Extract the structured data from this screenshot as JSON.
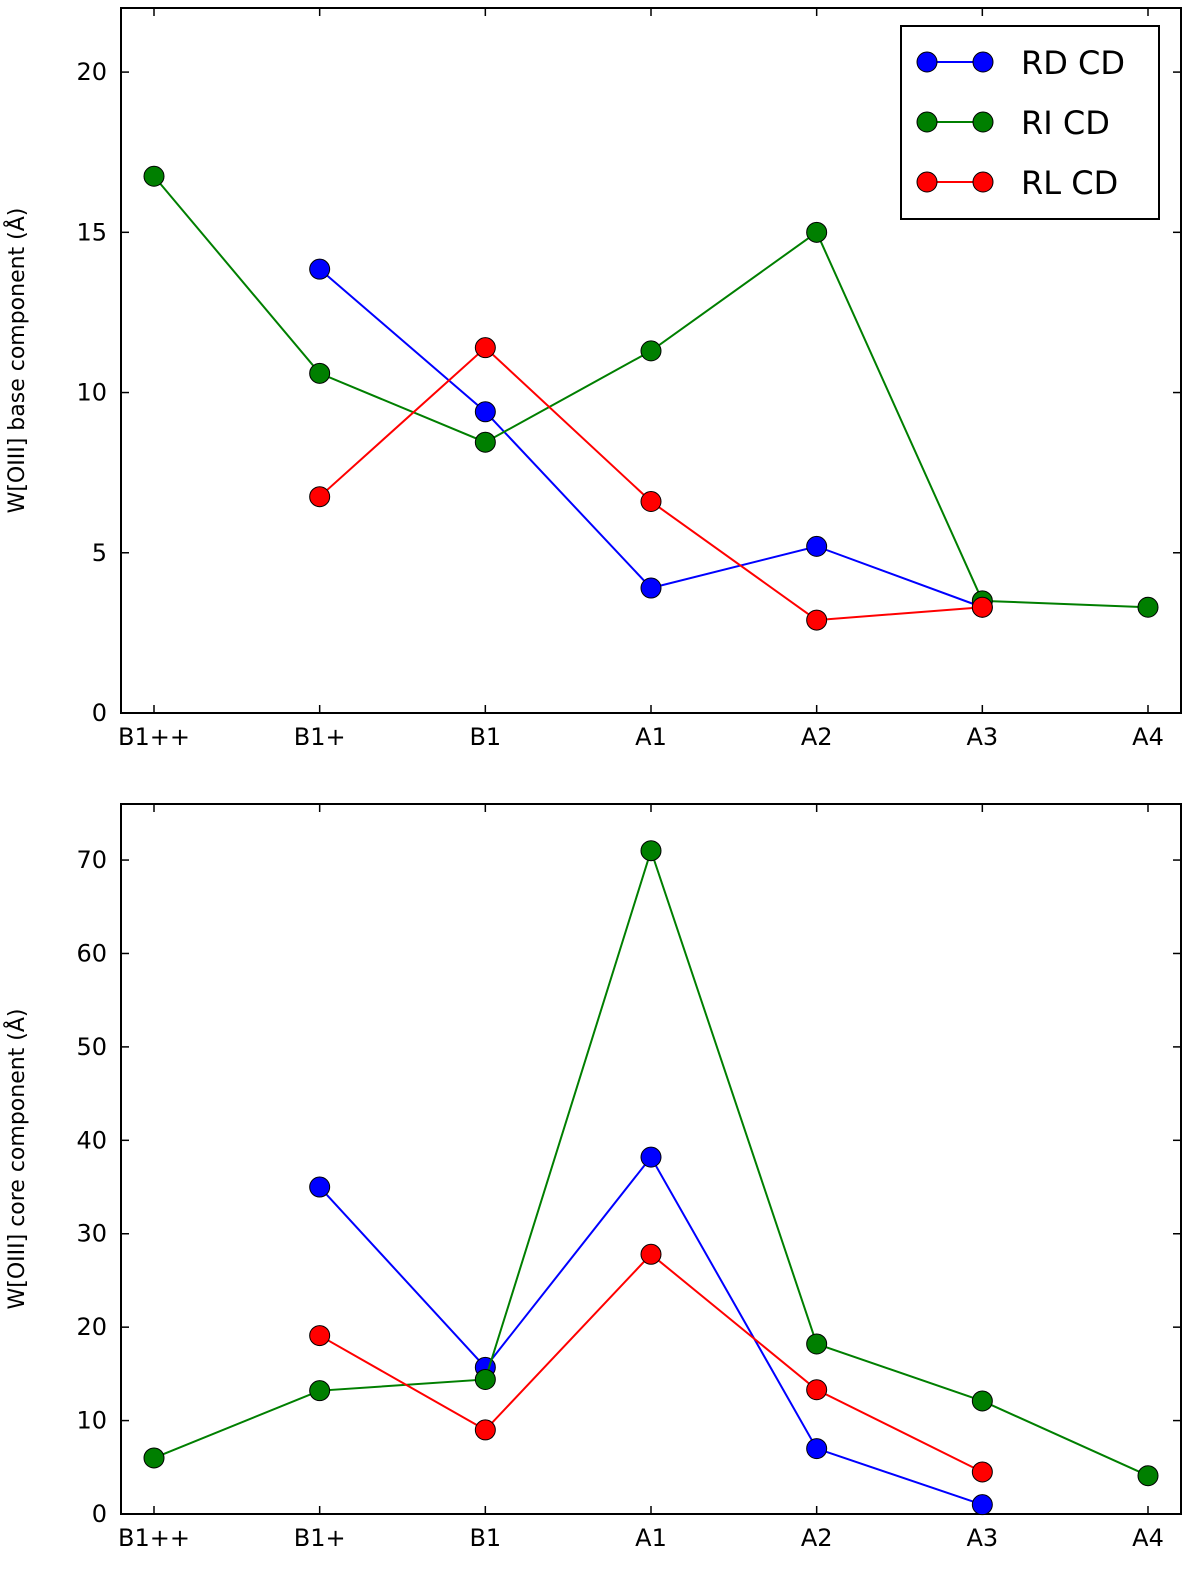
{
  "chart_data": [
    {
      "type": "line",
      "categories": [
        "B1++",
        "B1+",
        "B1",
        "A1",
        "A2",
        "A3",
        "A4"
      ],
      "ylabel": "W[OIII] base component (Å)",
      "ylim": [
        0,
        22
      ],
      "yticks": [
        0,
        5,
        10,
        15,
        20
      ],
      "legend": "top-right",
      "series": [
        {
          "name": "RD CD",
          "color": "#0000ff",
          "values": [
            null,
            13.85,
            9.4,
            3.9,
            5.2,
            3.3,
            null
          ]
        },
        {
          "name": "RI CD",
          "color": "#007f00",
          "values": [
            16.75,
            10.6,
            8.45,
            11.3,
            15.0,
            3.5,
            3.3
          ]
        },
        {
          "name": "RL CD",
          "color": "#ff0000",
          "values": [
            null,
            6.75,
            11.4,
            6.6,
            2.9,
            3.3,
            null
          ]
        }
      ]
    },
    {
      "type": "line",
      "categories": [
        "B1++",
        "B1+",
        "B1",
        "A1",
        "A2",
        "A3",
        "A4"
      ],
      "ylabel": "W[OIII] core component (Å)",
      "ylim": [
        0,
        76
      ],
      "yticks": [
        0,
        10,
        20,
        30,
        40,
        50,
        60,
        70
      ],
      "legend": "none",
      "series": [
        {
          "name": "RD CD",
          "color": "#0000ff",
          "values": [
            null,
            35.0,
            15.7,
            38.2,
            7.0,
            1.0,
            null
          ]
        },
        {
          "name": "RI CD",
          "color": "#007f00",
          "values": [
            6.0,
            13.2,
            14.4,
            71.0,
            18.2,
            12.1,
            4.1
          ]
        },
        {
          "name": "RL CD",
          "color": "#ff0000",
          "values": [
            null,
            19.1,
            9.0,
            27.8,
            13.3,
            4.5,
            null
          ]
        }
      ]
    }
  ]
}
